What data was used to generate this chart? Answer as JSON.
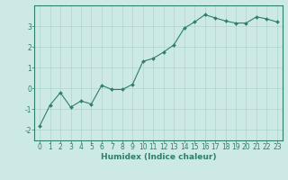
{
  "x": [
    0,
    1,
    2,
    3,
    4,
    5,
    6,
    7,
    8,
    9,
    10,
    11,
    12,
    13,
    14,
    15,
    16,
    17,
    18,
    19,
    20,
    21,
    22,
    23
  ],
  "y": [
    -1.8,
    -0.8,
    -0.2,
    -0.9,
    -0.6,
    -0.75,
    0.15,
    -0.05,
    -0.05,
    0.2,
    1.3,
    1.45,
    1.75,
    2.1,
    2.9,
    3.2,
    3.55,
    3.4,
    3.25,
    3.15,
    3.15,
    3.45,
    3.35,
    3.2
  ],
  "line_color": "#2e7d6e",
  "marker": "D",
  "marker_size": 2.0,
  "linewidth": 0.8,
  "xlabel": "Humidex (Indice chaleur)",
  "xlim": [
    -0.5,
    23.5
  ],
  "ylim": [
    -2.5,
    4.0
  ],
  "yticks": [
    -2,
    -1,
    0,
    1,
    2,
    3
  ],
  "xticks": [
    0,
    1,
    2,
    3,
    4,
    5,
    6,
    7,
    8,
    9,
    10,
    11,
    12,
    13,
    14,
    15,
    16,
    17,
    18,
    19,
    20,
    21,
    22,
    23
  ],
  "bg_color": "#cce9e5",
  "grid_color": "#b0d4cf",
  "spine_color": "#2e7d6e",
  "tick_color": "#2e7d6e",
  "label_color": "#2e7d6e",
  "xlabel_fontsize": 6.5,
  "tick_fontsize": 5.5
}
